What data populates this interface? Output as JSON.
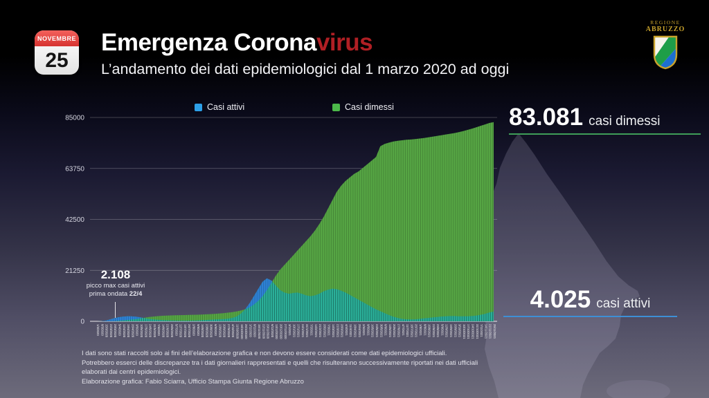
{
  "header": {
    "calendar": {
      "month": "NOVEMBRE",
      "day": "25"
    },
    "title_white": "Emergenza Corona",
    "title_red": "virus",
    "subtitle": "L’andamento dei dati epidemiologici dal 1 marzo 2020 ad oggi",
    "logo": {
      "line1": "REGIONE",
      "line2": "ABRUZZO"
    }
  },
  "legend": [
    {
      "label": "Casi attivi",
      "color": "#2da0e8"
    },
    {
      "label": "Casi dimessi",
      "color": "#4cb84a"
    }
  ],
  "stats": {
    "dimessi": {
      "value": "83.081",
      "label": "casi dimessi",
      "rule_color": "#3f9e58"
    },
    "attivi": {
      "value": "4.025",
      "label": "casi attivi",
      "rule_color": "#3d8fd6"
    }
  },
  "annotation": {
    "value": "2.108",
    "line1": "picco max casi attivi",
    "line2_prefix": "prima ondata ",
    "line2_bold": "22/4"
  },
  "footer": {
    "lines": [
      "I dati sono stati raccolti solo ai fini dell’elaborazione grafica e non devono essere considerati come dati epidemiologici ufficiali.",
      "Potrebbero esserci delle discrepanze tra i dati giornalieri rappresentati e quelli che risulteranno successivamente riportati nei dati ufficiali",
      "elaborati dai centri epidemiologici.",
      "Elaborazione grafica: Fabio Sciarra, Ufficio Stampa Giunta Regione Abruzzo"
    ]
  },
  "chart_data": {
    "type": "area",
    "title": "",
    "xlabel": "",
    "ylabel": "",
    "ylim": [
      0,
      85000
    ],
    "y_ticks": [
      0,
      21250,
      42500,
      63750,
      85000
    ],
    "grid": true,
    "legend_position": "top",
    "x_labels": [
      "1/3/2020",
      "8/3/2020",
      "15/3/2020",
      "22/3/2020",
      "29/3/2020",
      "5/4/2020",
      "12/4/2020",
      "19/4/2020",
      "26/4/2020",
      "3/5/2020",
      "10/5/2020",
      "17/5/2020",
      "24/5/2020",
      "31/5/2020",
      "7/6/2020",
      "14/6/2020",
      "21/6/2020",
      "28/6/2020",
      "5/7/2020",
      "12/7/2020",
      "19/7/2020",
      "26/7/2020",
      "2/8/2020",
      "9/8/2020",
      "16/8/2020",
      "23/8/2020",
      "30/8/2020",
      "6/9/2020",
      "13/9/2020",
      "20/9/2020",
      "27/9/2020",
      "4/10/2020",
      "11/10/2020",
      "18/10/2020",
      "25/10/2020",
      "1/11/2020",
      "8/11/2020",
      "15/11/2020",
      "22/11/2020",
      "29/11/2020",
      "6/12/2020",
      "13/12/2020",
      "20/12/2020",
      "27/12/2020",
      "3/1/2021",
      "10/1/2021",
      "17/1/2021",
      "24/1/2021",
      "31/1/2021",
      "7/2/2021",
      "14/2/2021",
      "21/2/2021",
      "28/2/2021",
      "7/3/2021",
      "14/3/2021",
      "21/3/2021",
      "28/3/2021",
      "4/4/2021",
      "11/4/2021",
      "18/4/2021",
      "25/4/2021",
      "2/5/2021",
      "9/5/2021",
      "16/5/2021",
      "23/5/2021",
      "30/5/2021",
      "6/6/2021",
      "13/6/2021",
      "20/6/2021",
      "27/6/2021",
      "4/7/2021",
      "11/7/2021",
      "18/7/2021",
      "25/7/2021",
      "1/8/2021",
      "8/8/2021",
      "15/8/2021",
      "22/8/2021",
      "29/8/2021",
      "5/9/2021",
      "12/9/2021",
      "19/9/2021",
      "26/9/2021",
      "3/10/2021",
      "10/10/2021",
      "17/10/2021",
      "24/10/2021",
      "31/10/2021",
      "7/11/2021",
      "14/11/2021",
      "21/11/2021",
      "25/11/2021"
    ],
    "series": [
      {
        "name": "Casi attivi",
        "color_solo": "#2e82d6",
        "color_overlap": "#2bb29b",
        "values": [
          5,
          30,
          250,
          800,
          1300,
          1700,
          1950,
          2080,
          2050,
          1900,
          1600,
          1300,
          1000,
          800,
          650,
          500,
          430,
          380,
          330,
          300,
          290,
          300,
          330,
          380,
          450,
          550,
          650,
          750,
          850,
          950,
          1100,
          1400,
          2000,
          3200,
          5000,
          7500,
          10500,
          13500,
          16500,
          17900,
          17000,
          15000,
          13000,
          12000,
          11500,
          11800,
          12000,
          11500,
          10800,
          10500,
          10800,
          11500,
          12500,
          13200,
          13600,
          13400,
          12800,
          12000,
          11000,
          10000,
          9000,
          8000,
          7000,
          6000,
          5000,
          4200,
          3400,
          2600,
          1900,
          1400,
          1000,
          850,
          800,
          850,
          1000,
          1200,
          1400,
          1600,
          1800,
          2000,
          2100,
          2200,
          2200,
          2100,
          2100,
          2100,
          2200,
          2400,
          2700,
          3100,
          3700,
          4025
        ]
      },
      {
        "name": "Casi dimessi",
        "color": "#56a644",
        "values": [
          0,
          0,
          10,
          40,
          100,
          200,
          350,
          550,
          750,
          950,
          1200,
          1500,
          1800,
          2000,
          2150,
          2300,
          2400,
          2450,
          2500,
          2550,
          2600,
          2650,
          2700,
          2750,
          2800,
          2900,
          3000,
          3100,
          3250,
          3400,
          3600,
          3800,
          4100,
          4500,
          5000,
          5800,
          7000,
          8500,
          10500,
          13000,
          16000,
          19000,
          21500,
          23500,
          25500,
          27500,
          29500,
          31500,
          33500,
          35500,
          37800,
          40500,
          43500,
          47000,
          50500,
          54000,
          56500,
          58500,
          60000,
          61500,
          62500,
          64000,
          65500,
          67000,
          68500,
          73000,
          74000,
          74500,
          75000,
          75300,
          75500,
          75700,
          75800,
          76000,
          76200,
          76400,
          76700,
          77000,
          77300,
          77600,
          77900,
          78200,
          78500,
          78900,
          79300,
          79800,
          80300,
          80900,
          81500,
          82100,
          82700,
          83081
        ]
      }
    ],
    "annotations": [
      {
        "text": "2.108 picco max casi attivi prima ondata 22/4",
        "x": "22/4/2020",
        "y": 2108
      }
    ],
    "callouts": [
      {
        "text": "83.081 casi dimessi"
      },
      {
        "text": "4.025 casi attivi"
      }
    ]
  }
}
